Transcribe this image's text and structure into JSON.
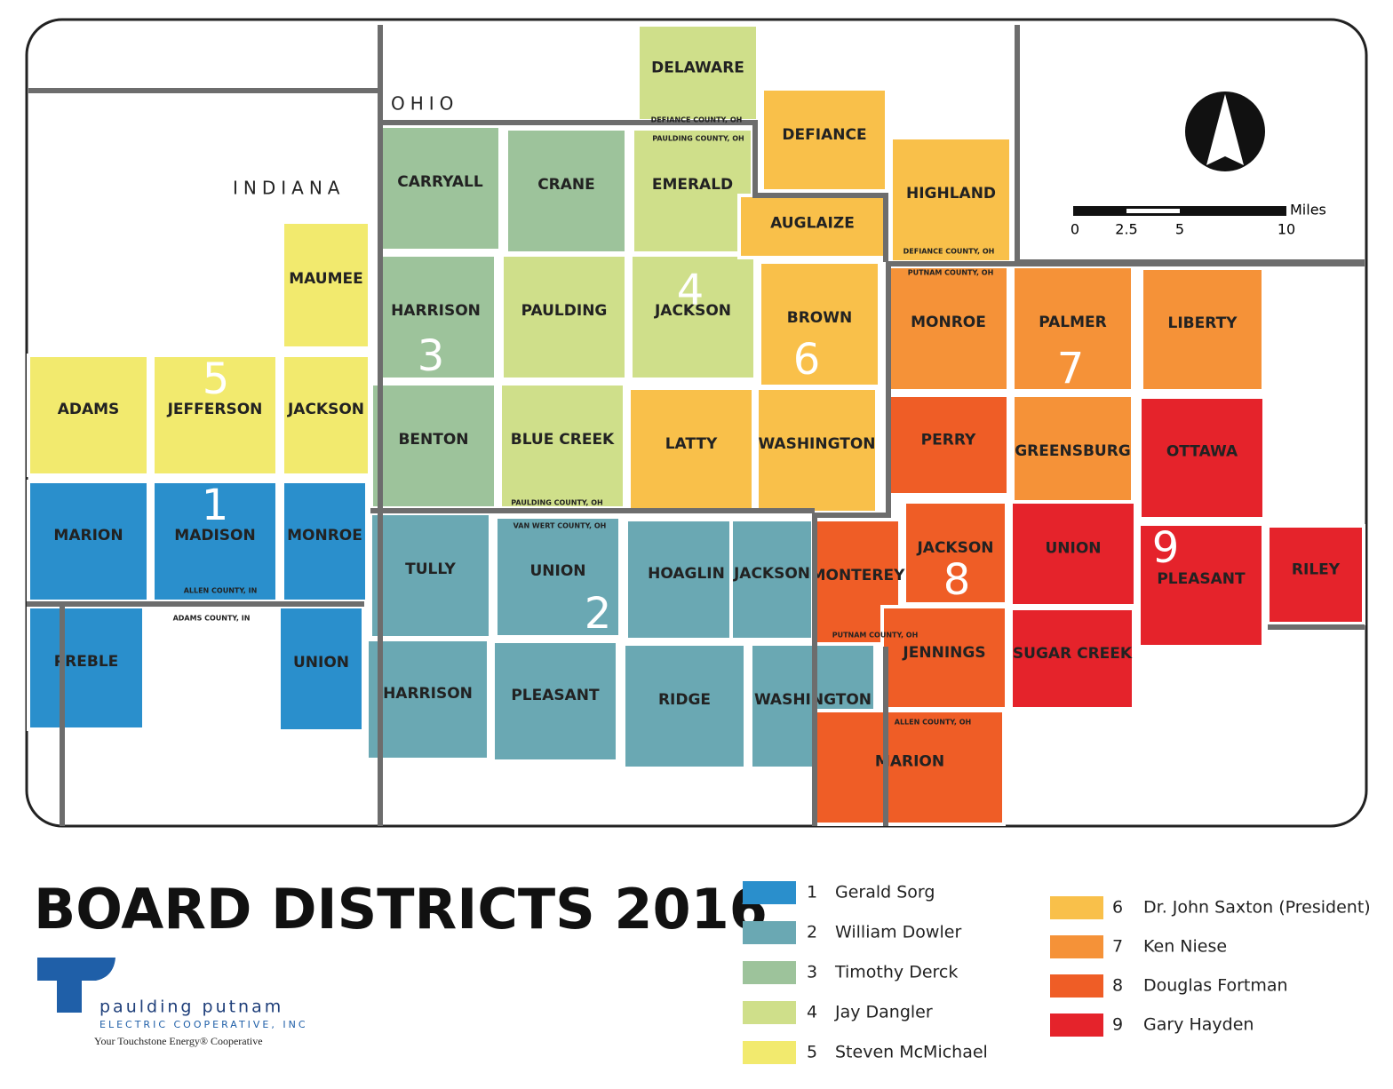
{
  "title": "BOARD DISTRICTS 2016",
  "states": [
    "INDIANA",
    "OHIO"
  ],
  "county_labels": [
    "DEFIANCE COUNTY, OH",
    "PAULDING COUNTY, OH",
    "DEFIANCE COUNTY, OH",
    "PUTNAM COUNTY, OH",
    "PAULDING COUNTY, OH",
    "VAN WERT COUNTY, OH",
    "ALLEN COUNTY, IN",
    "ADAMS COUNTY, IN",
    "PUTNAM COUNTY, OH",
    "ALLEN COUNTY, OH"
  ],
  "districts": [
    {
      "number": "1",
      "member": "Gerald Sorg",
      "color": "#2a8fcc"
    },
    {
      "number": "2",
      "member": "William Dowler",
      "color": "#6aa8b3"
    },
    {
      "number": "3",
      "member": "Timothy Derck",
      "color": "#9dc39b"
    },
    {
      "number": "4",
      "member": "Jay Dangler",
      "color": "#cfdf8a"
    },
    {
      "number": "5",
      "member": "Steven McMichael",
      "color": "#f2ea6e"
    },
    {
      "number": "6",
      "member": "Dr. John Saxton (President)",
      "color": "#f9c04a"
    },
    {
      "number": "7",
      "member": "Ken Niese",
      "color": "#f59238"
    },
    {
      "number": "8",
      "member": "Douglas Fortman",
      "color": "#ef5d26"
    },
    {
      "number": "9",
      "member": "Gary Hayden",
      "color": "#e5232b"
    }
  ],
  "townships": [
    {
      "name": "MAUMEE",
      "district": "5"
    },
    {
      "name": "ADAMS",
      "district": "5"
    },
    {
      "name": "JEFFERSON",
      "district": "5"
    },
    {
      "name": "JACKSON",
      "district": "5"
    },
    {
      "name": "MARION",
      "district": "1"
    },
    {
      "name": "MADISON",
      "district": "1"
    },
    {
      "name": "MONROE",
      "district": "1"
    },
    {
      "name": "PREBLE",
      "district": "1"
    },
    {
      "name": "UNION",
      "district": "1"
    },
    {
      "name": "CARRYALL",
      "district": "3"
    },
    {
      "name": "CRANE",
      "district": "3"
    },
    {
      "name": "HARRISON",
      "district": "3"
    },
    {
      "name": "BENTON",
      "district": "3"
    },
    {
      "name": "DELAWARE",
      "district": "4"
    },
    {
      "name": "EMERALD",
      "district": "4"
    },
    {
      "name": "PAULDING",
      "district": "4"
    },
    {
      "name": "JACKSON",
      "district": "4"
    },
    {
      "name": "BLUE CREEK",
      "district": "4"
    },
    {
      "name": "DEFIANCE",
      "district": "6"
    },
    {
      "name": "AUGLAIZE",
      "district": "6"
    },
    {
      "name": "HIGHLAND",
      "district": "6"
    },
    {
      "name": "BROWN",
      "district": "6"
    },
    {
      "name": "LATTY",
      "district": "6"
    },
    {
      "name": "WASHINGTON",
      "district": "6"
    },
    {
      "name": "TULLY",
      "district": "2"
    },
    {
      "name": "UNION",
      "district": "2"
    },
    {
      "name": "HOAGLIN",
      "district": "2"
    },
    {
      "name": "JACKSON",
      "district": "2"
    },
    {
      "name": "HARRISON",
      "district": "2"
    },
    {
      "name": "PLEASANT",
      "district": "2"
    },
    {
      "name": "RIDGE",
      "district": "2"
    },
    {
      "name": "WASHINGTON",
      "district": "2"
    },
    {
      "name": "MONROE",
      "district": "7"
    },
    {
      "name": "PALMER",
      "district": "7"
    },
    {
      "name": "LIBERTY",
      "district": "7"
    },
    {
      "name": "GREENSBURG",
      "district": "7"
    },
    {
      "name": "PERRY",
      "district": "8"
    },
    {
      "name": "MONTEREY",
      "district": "8"
    },
    {
      "name": "JACKSON",
      "district": "8"
    },
    {
      "name": "JENNINGS",
      "district": "8"
    },
    {
      "name": "MARION",
      "district": "8"
    },
    {
      "name": "OTTAWA",
      "district": "9"
    },
    {
      "name": "UNION",
      "district": "9"
    },
    {
      "name": "PLEASANT",
      "district": "9"
    },
    {
      "name": "RILEY",
      "district": "9"
    },
    {
      "name": "SUGAR CREEK",
      "district": "9"
    }
  ],
  "scale": {
    "unit": "Miles",
    "ticks": [
      "0",
      "2.5",
      "5",
      "10"
    ]
  },
  "logo": {
    "name": "paulding putnam",
    "sub": "ELECTRIC COOPERATIVE, INC",
    "tagline": "Your Touchstone Energy® Cooperative"
  }
}
